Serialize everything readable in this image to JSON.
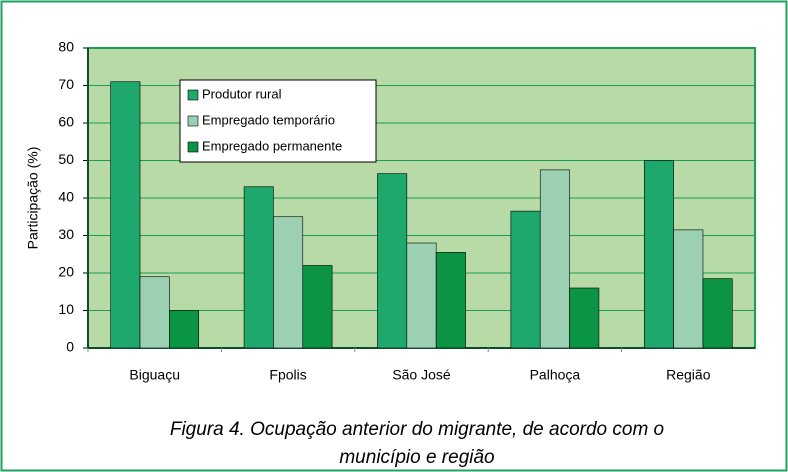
{
  "chart_data": {
    "type": "bar",
    "title": [
      "Figura 4. Ocupação anterior do migrante, de acordo  com o",
      "município  e região"
    ],
    "y_label": "Participação (%)",
    "categories": [
      "Biguaçu",
      "Fpolis",
      "São José",
      "Palhoça",
      "Região"
    ],
    "series": [
      {
        "name": "Produtor rural",
        "color": "#1ea86c",
        "values": [
          71,
          43,
          46.5,
          36.5,
          50
        ]
      },
      {
        "name": "Empregado temporário",
        "color": "#9bd0b2",
        "values": [
          19,
          35,
          28,
          47.5,
          31.5
        ]
      },
      {
        "name": "Empregado permanente",
        "color": "#0b9444",
        "values": [
          10,
          22,
          25.5,
          16,
          18.5
        ]
      }
    ],
    "ylim": [
      0,
      80
    ],
    "yticks": [
      0,
      10,
      20,
      30,
      40,
      50,
      60,
      70,
      80
    ],
    "grid": true,
    "legend": "upper left",
    "plot_background": "#b7daa6"
  }
}
